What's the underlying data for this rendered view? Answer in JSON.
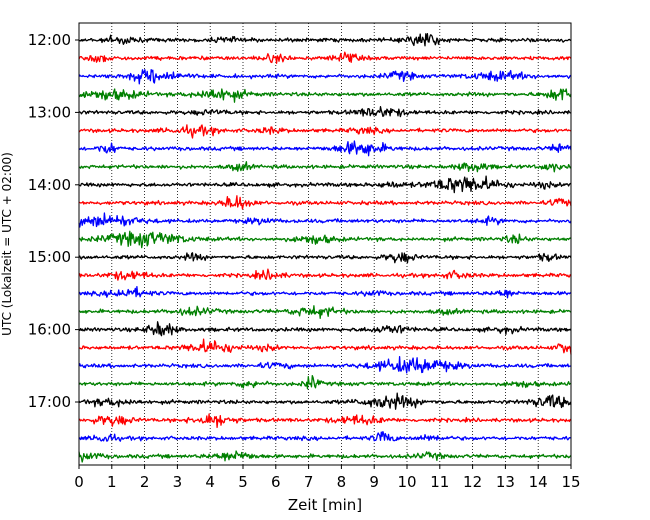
{
  "chart_data": {
    "type": "line",
    "xlabel": "Zeit  [min]",
    "ylabel": "UTC (Lokalzeit = UTC + 02:00)",
    "xlim": [
      0,
      15
    ],
    "x_ticks": [
      "0",
      "1",
      "2",
      "3",
      "4",
      "5",
      "6",
      "7",
      "8",
      "9",
      "10",
      "11",
      "12",
      "13",
      "14",
      "15"
    ],
    "y_ticks": [
      {
        "label": "12:00",
        "row": 0
      },
      {
        "label": "13:00",
        "row": 4
      },
      {
        "label": "14:00",
        "row": 8
      },
      {
        "label": "15:00",
        "row": 12
      },
      {
        "label": "16:00",
        "row": 16
      },
      {
        "label": "17:00",
        "row": 20
      }
    ],
    "grid": "vertical-dotted",
    "trace_colors": [
      "#000000",
      "#ff0000",
      "#0000ff",
      "#008000"
    ],
    "rows": [
      {
        "utc": "12:00",
        "color": "#000000",
        "bursts": [
          [
            1.3,
            0.5,
            0.3
          ],
          [
            10.5,
            1.0,
            0.3
          ],
          [
            4.5,
            0.3,
            0.25
          ]
        ]
      },
      {
        "utc": "12:15",
        "color": "#ff0000",
        "bursts": [
          [
            0.7,
            0.4,
            0.3
          ],
          [
            6.0,
            0.4,
            0.3
          ],
          [
            8.1,
            0.6,
            0.25
          ]
        ]
      },
      {
        "utc": "12:30",
        "color": "#0000ff",
        "bursts": [
          [
            2.3,
            0.9,
            0.5
          ],
          [
            9.8,
            0.5,
            0.3
          ],
          [
            12.8,
            0.5,
            0.6
          ]
        ]
      },
      {
        "utc": "12:45",
        "color": "#008000",
        "bursts": [
          [
            1.0,
            0.6,
            0.6
          ],
          [
            4.3,
            0.8,
            0.5
          ],
          [
            14.7,
            0.9,
            0.3
          ]
        ]
      },
      {
        "utc": "13:00",
        "color": "#000000",
        "bursts": [
          [
            9.2,
            0.6,
            0.5
          ],
          [
            4.0,
            0.2,
            0.4
          ]
        ]
      },
      {
        "utc": "13:15",
        "color": "#ff0000",
        "bursts": [
          [
            3.5,
            0.5,
            0.5
          ],
          [
            5.8,
            0.3,
            0.3
          ],
          [
            8.7,
            0.3,
            0.3
          ]
        ]
      },
      {
        "utc": "13:30",
        "color": "#0000ff",
        "bursts": [
          [
            0.9,
            0.7,
            0.2
          ],
          [
            8.6,
            0.9,
            0.5
          ],
          [
            14.7,
            0.6,
            0.2
          ]
        ]
      },
      {
        "utc": "13:45",
        "color": "#008000",
        "bursts": [
          [
            4.9,
            0.5,
            0.2
          ],
          [
            12.0,
            0.6,
            0.3
          ],
          [
            14.4,
            0.5,
            0.2
          ]
        ]
      },
      {
        "utc": "14:00",
        "color": "#000000",
        "bursts": [
          [
            11.8,
            1.1,
            0.7
          ],
          [
            9.5,
            0.3,
            0.3
          ],
          [
            14.2,
            0.3,
            0.2
          ]
        ]
      },
      {
        "utc": "14:15",
        "color": "#ff0000",
        "bursts": [
          [
            4.8,
            0.9,
            0.3
          ],
          [
            14.7,
            0.6,
            0.2
          ]
        ]
      },
      {
        "utc": "14:30",
        "color": "#0000ff",
        "bursts": [
          [
            0.8,
            0.8,
            0.7
          ],
          [
            5.5,
            0.3,
            0.3
          ],
          [
            12.5,
            0.3,
            0.3
          ]
        ]
      },
      {
        "utc": "14:45",
        "color": "#008000",
        "bursts": [
          [
            2.0,
            0.9,
            0.8
          ],
          [
            7.2,
            0.5,
            0.4
          ],
          [
            13.3,
            0.5,
            0.2
          ]
        ]
      },
      {
        "utc": "15:00",
        "color": "#000000",
        "bursts": [
          [
            3.5,
            0.4,
            0.2
          ],
          [
            9.8,
            0.6,
            0.3
          ],
          [
            14.3,
            0.4,
            0.2
          ]
        ]
      },
      {
        "utc": "15:15",
        "color": "#ff0000",
        "bursts": [
          [
            1.5,
            0.5,
            0.4
          ],
          [
            5.8,
            0.5,
            0.3
          ],
          [
            11.5,
            0.4,
            0.3
          ]
        ]
      },
      {
        "utc": "15:30",
        "color": "#0000ff",
        "bursts": [
          [
            1.5,
            0.6,
            0.4
          ],
          [
            9.0,
            0.3,
            0.2
          ],
          [
            13.0,
            0.5,
            0.2
          ]
        ]
      },
      {
        "utc": "15:45",
        "color": "#008000",
        "bursts": [
          [
            3.5,
            0.4,
            0.4
          ],
          [
            7.2,
            0.6,
            0.5
          ],
          [
            11.2,
            0.3,
            0.2
          ]
        ]
      },
      {
        "utc": "16:00",
        "color": "#000000",
        "bursts": [
          [
            2.5,
            0.9,
            0.3
          ],
          [
            9.5,
            0.5,
            0.4
          ],
          [
            13.0,
            0.3,
            0.3
          ]
        ]
      },
      {
        "utc": "16:15",
        "color": "#ff0000",
        "bursts": [
          [
            4.0,
            0.8,
            0.5
          ],
          [
            5.7,
            0.3,
            0.2
          ],
          [
            14.9,
            0.9,
            0.2
          ]
        ]
      },
      {
        "utc": "16:30",
        "color": "#0000ff",
        "bursts": [
          [
            10.2,
            1.0,
            0.8
          ],
          [
            6.0,
            0.3,
            0.3
          ]
        ]
      },
      {
        "utc": "16:45",
        "color": "#008000",
        "bursts": [
          [
            7.1,
            0.9,
            0.15
          ],
          [
            5.2,
            0.4,
            0.3
          ],
          [
            13.5,
            0.3,
            0.3
          ]
        ]
      },
      {
        "utc": "17:00",
        "color": "#000000",
        "bursts": [
          [
            9.5,
            0.8,
            0.6
          ],
          [
            14.4,
            0.8,
            0.4
          ],
          [
            1.0,
            0.4,
            0.5
          ]
        ]
      },
      {
        "utc": "17:15",
        "color": "#ff0000",
        "bursts": [
          [
            1.0,
            0.6,
            0.4
          ],
          [
            4.1,
            0.8,
            0.4
          ],
          [
            8.5,
            0.5,
            0.5
          ]
        ]
      },
      {
        "utc": "17:30",
        "color": "#0000ff",
        "bursts": [
          [
            0.8,
            0.7,
            0.2
          ],
          [
            9.3,
            0.8,
            0.2
          ],
          [
            10.7,
            0.3,
            0.3
          ]
        ]
      },
      {
        "utc": "17:45",
        "color": "#008000",
        "bursts": [
          [
            0.2,
            0.5,
            0.3
          ],
          [
            4.7,
            0.6,
            0.4
          ],
          [
            10.7,
            0.3,
            0.3
          ]
        ]
      }
    ]
  }
}
